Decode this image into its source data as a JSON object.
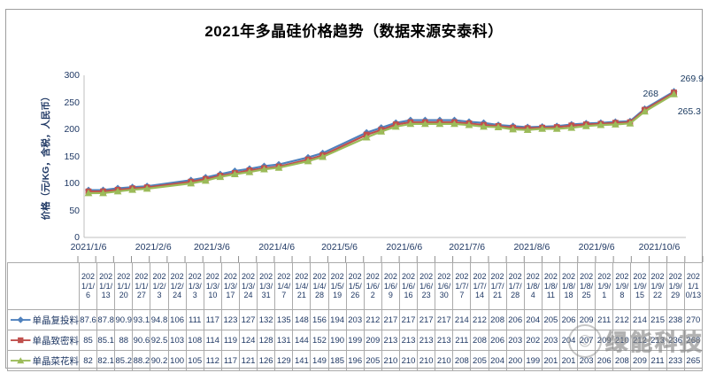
{
  "title": "2021年多晶硅价格趋势（数据来源安泰科）",
  "watermark": {
    "icon": "wechat-logo-icon",
    "text": "绿能科技"
  },
  "chart_data": {
    "type": "line",
    "title": "2021年多晶硅价格趋势（数据来源安泰科）",
    "ylabel": "价格（元/KG，含税，人民币）",
    "xlabel": "",
    "ylim": [
      0,
      300
    ],
    "yticks": [
      0,
      50,
      100,
      150,
      200,
      250,
      300
    ],
    "grid": false,
    "legend_position": "data-table-left",
    "x_axis_labels": [
      "2021/1/6",
      "2021/2/6",
      "2021/3/6",
      "2021/4/6",
      "2021/5/6",
      "2021/6/6",
      "2021/7/6",
      "2021/8/6",
      "2021/9/6",
      "2021/10/6"
    ],
    "categories": [
      "2021/1/6",
      "2021/1/13",
      "2021/1/20",
      "2021/1/27",
      "2021/2/3",
      "2021/2/24",
      "2021/3/3",
      "2021/3/10",
      "2021/3/17",
      "2021/3/24",
      "2021/3/31",
      "2021/4/7",
      "2021/4/21",
      "2021/4/28",
      "2021/5/19",
      "2021/5/26",
      "2021/6/2",
      "2021/6/9",
      "2021/6/16",
      "2021/6/23",
      "2021/6/30",
      "2021/7/7",
      "2021/7/14",
      "2021/7/21",
      "2021/7/28",
      "2021/8/4",
      "2021/8/11",
      "2021/8/18",
      "2021/8/25",
      "2021/9/1",
      "2021/9/8",
      "2021/9/15",
      "2021/9/22",
      "2021/9/29",
      "2021/10/13"
    ],
    "series": [
      {
        "name": "单晶复投料",
        "color": "#4F81BD",
        "marker": "diamond",
        "end_label": "269.9",
        "values": [
          "87.6",
          "87.8",
          "90.9",
          "93.1",
          "94.8",
          "106",
          "111",
          "117",
          "123",
          "127",
          "132",
          "135",
          "148",
          "156",
          "194",
          "203",
          "212",
          "217",
          "217",
          "217",
          "217",
          "214",
          "212",
          "208",
          "206",
          "204",
          "205",
          "206",
          "209",
          "211",
          "212",
          "214",
          "215",
          "238",
          "270"
        ]
      },
      {
        "name": "单晶致密料",
        "color": "#C0504D",
        "marker": "square",
        "end_label": "268",
        "values": [
          "85",
          "85.1",
          "88",
          "90.6",
          "92.5",
          "103",
          "108",
          "114",
          "119",
          "124",
          "128",
          "131",
          "144",
          "152",
          "190",
          "199",
          "209",
          "213",
          "213",
          "213",
          "213",
          "211",
          "208",
          "206",
          "203",
          "202",
          "203",
          "204",
          "207",
          "209",
          "210",
          "212",
          "213",
          "236",
          "268"
        ]
      },
      {
        "name": "单晶菜花料",
        "color": "#9BBB59",
        "marker": "triangle",
        "end_label": "265.3",
        "values": [
          "82",
          "82.1",
          "85.2",
          "88.2",
          "90.2",
          "100",
          "105",
          "112",
          "117",
          "121",
          "126",
          "129",
          "141",
          "149",
          "185",
          "196",
          "205",
          "210",
          "210",
          "210",
          "210",
          "208",
          "205",
          "204",
          "200",
          "199",
          "201",
          "201",
          "203",
          "206",
          "208",
          "209",
          "211",
          "233",
          "265"
        ]
      }
    ]
  }
}
